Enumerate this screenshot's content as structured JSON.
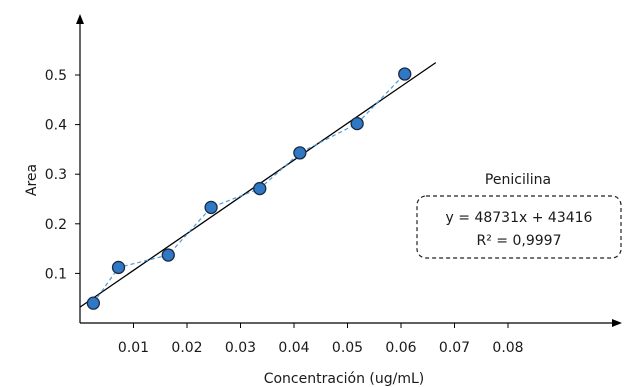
{
  "chart_data": {
    "type": "scatter",
    "xlabel": "Concentración (ug/mL)",
    "ylabel": "Area",
    "xlim": [
      0,
      0.08
    ],
    "ylim": [
      0,
      0.55
    ],
    "x_ticks": [
      "0.01",
      "0.02",
      "0.03",
      "0.04",
      "0.05",
      "0.06",
      "0.07",
      "0.08"
    ],
    "y_ticks": [
      "0.1",
      "0.2",
      "0.3",
      "0.4",
      "0.5"
    ],
    "x_tick_values": [
      0.01,
      0.02,
      0.03,
      0.04,
      0.05,
      0.06,
      0.07,
      0.08
    ],
    "y_tick_values": [
      0.1,
      0.2,
      0.3,
      0.4,
      0.5
    ],
    "points": [
      {
        "x": 0.0025,
        "y": 0.04
      },
      {
        "x": 0.0072,
        "y": 0.112
      },
      {
        "x": 0.0165,
        "y": 0.137
      },
      {
        "x": 0.0245,
        "y": 0.233
      },
      {
        "x": 0.0336,
        "y": 0.271
      },
      {
        "x": 0.0411,
        "y": 0.343
      },
      {
        "x": 0.0518,
        "y": 0.402
      },
      {
        "x": 0.0607,
        "y": 0.502
      }
    ],
    "trendline": {
      "x": [
        0.0,
        0.0665
      ],
      "y": [
        0.032,
        0.525
      ]
    },
    "legend": {
      "title": "Penicilina",
      "equation": "y = 48731x + 43416",
      "r2": "R² = 0,9997"
    },
    "colors": {
      "marker_fill": "#2f78c4",
      "marker_stroke": "#1b2a44",
      "connector": "#4a9bd8",
      "trendline": "#000000",
      "axis": "#000000"
    },
    "grid": false
  }
}
